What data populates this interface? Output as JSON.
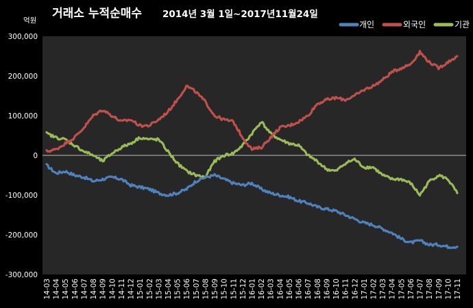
{
  "chart_data": {
    "type": "line",
    "title": "거래소 누적순매수",
    "subtitle": "2014년 3월 1일~2017년11월24일",
    "ylabel": "억원",
    "ylim": [
      -300000,
      300000
    ],
    "yticks": [
      300000,
      200000,
      100000,
      0,
      -100000,
      -200000,
      -300000
    ],
    "ytick_labels": [
      "300,000",
      "200,000",
      "100,000",
      "0",
      "-100,000",
      "-200,000",
      "-300,000"
    ],
    "grid": false,
    "legend_position": "top-right",
    "categories": [
      "14-03",
      "14-04",
      "14-05",
      "14-06",
      "14-07",
      "14-08",
      "14-09",
      "14-10",
      "14-11",
      "14-12",
      "15-01",
      "15-02",
      "15-03",
      "15-04",
      "15-05",
      "15-06",
      "15-07",
      "15-08",
      "15-09",
      "15-10",
      "15-11",
      "15-12",
      "16-01",
      "16-02",
      "16-03",
      "16-04",
      "16-05",
      "16-06",
      "16-07",
      "16-08",
      "16-09",
      "16-10",
      "16-11",
      "16-12",
      "17-01",
      "17-02",
      "17-03",
      "17-04",
      "17-05",
      "17-06",
      "17-07",
      "17-08",
      "17-09",
      "17-10",
      "17-11"
    ],
    "series": [
      {
        "name": "개인",
        "color": "#4f81bd",
        "values": [
          -25000,
          -45000,
          -40000,
          -50000,
          -55000,
          -65000,
          -60000,
          -55000,
          -60000,
          -75000,
          -80000,
          -85000,
          -95000,
          -100000,
          -95000,
          -85000,
          -65000,
          -55000,
          -50000,
          -60000,
          -70000,
          -75000,
          -70000,
          -85000,
          -95000,
          -100000,
          -105000,
          -115000,
          -120000,
          -130000,
          -135000,
          -140000,
          -150000,
          -160000,
          -170000,
          -175000,
          -185000,
          -195000,
          -210000,
          -220000,
          -215000,
          -225000,
          -225000,
          -230000,
          -230000
        ]
      },
      {
        "name": "외국인",
        "color": "#c0504d",
        "values": [
          10000,
          15000,
          30000,
          45000,
          70000,
          100000,
          115000,
          100000,
          85000,
          90000,
          75000,
          75000,
          90000,
          110000,
          140000,
          175000,
          160000,
          135000,
          100000,
          90000,
          85000,
          45000,
          15000,
          20000,
          45000,
          70000,
          75000,
          85000,
          100000,
          130000,
          140000,
          145000,
          140000,
          150000,
          165000,
          175000,
          190000,
          210000,
          220000,
          230000,
          260000,
          235000,
          220000,
          235000,
          250000
        ]
      },
      {
        "name": "기관",
        "color": "#9bbb59",
        "values": [
          55000,
          45000,
          40000,
          25000,
          10000,
          0,
          -15000,
          5000,
          20000,
          30000,
          45000,
          40000,
          40000,
          10000,
          -20000,
          -40000,
          -50000,
          -55000,
          -15000,
          0,
          5000,
          25000,
          55000,
          85000,
          55000,
          40000,
          30000,
          25000,
          0,
          -15000,
          -35000,
          -40000,
          -20000,
          -10000,
          -30000,
          -30000,
          -50000,
          -60000,
          -60000,
          -70000,
          -100000,
          -65000,
          -50000,
          -60000,
          -95000
        ]
      }
    ]
  }
}
